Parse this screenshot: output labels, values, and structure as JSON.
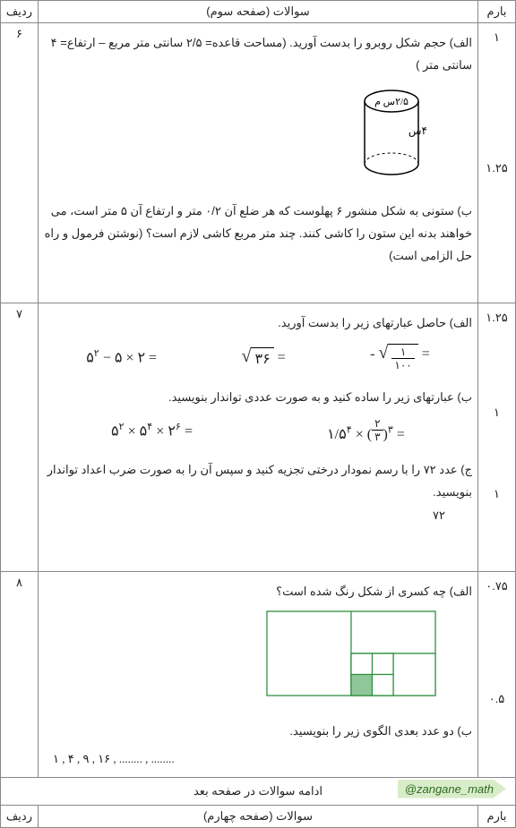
{
  "headers": {
    "marks": "بارم",
    "questions_p3": "سوالات (صفحه سوم)",
    "questions_p4": "سوالات (صفحه چهارم)",
    "row": "ردیف"
  },
  "q6": {
    "row": "۶",
    "a_mark": "۱",
    "b_mark": "۱.۲۵",
    "a_text": "الف) حجم شکل روبرو را بدست آورید. (مساحت قاعده= ۲/۵ سانتی متر مربع – ارتفاع= ۴ سانتی متر )",
    "cyl_top_label": "۲/۵س م",
    "cyl_side_label": "۴س",
    "b_text": "ب) ستونی به شکل منشور ۶ پهلوست که هر ضلع آن ۰/۲ متر و ارتفاع آن ۵ متر است، می خواهند بدنه این ستون را کاشی کنند. چند متر مربع کاشی لازم است؟ (نوشتن فرمول و راه حل الزامی است)"
  },
  "q7": {
    "row": "۷",
    "a_mark": "۱.۲۵",
    "b_mark": "۱",
    "c_mark": "۱",
    "a_text": "الف) حاصل عبارتهای زیر را بدست آورید.",
    "expr1": "۵<sup>۲</sup> − ۵ × ۲ =",
    "expr2_radicand": "۳۶",
    "expr3_num": "۱",
    "expr3_den": "۱۰۰",
    "b_text": "ب) عبارتهای زیر را ساده کنید و به صورت عددی تواندار بنویسید.",
    "expr4": "۵<sup>۲</sup> × ۵<sup>۴</sup> × ۲<sup>۶</sup> =",
    "expr5_base": "۱/۵<sup>۴</sup> × (",
    "expr5_frac_n": "۲",
    "expr5_frac_d": "۳",
    "expr5_tail": ")<sup>۳</sup> =",
    "c_text": "ج) عدد ۷۲ را با رسم نمودار درختی تجزیه کنید و سپس آن را به صورت ضرب اعداد تواندار بنویسید.",
    "c_num": "۷۲"
  },
  "q8": {
    "row": "۸",
    "a_mark": "۰.۷۵",
    "b_mark": "۰.۵",
    "a_text": "الف) چه کسری از شکل رنگ شده است؟",
    "b_text": "ب) دو عدد بعدی الگوی زیر را بنویسید.",
    "sequence": "۱ , ۴ , ۹ , ۱۶ , ........ , ........",
    "grid": {
      "stroke": "#2f8f3f",
      "fill": "#8fc79a"
    }
  },
  "continue_text": "ادامه سوالات در صفحه بعد",
  "handle": "@zangane_math"
}
